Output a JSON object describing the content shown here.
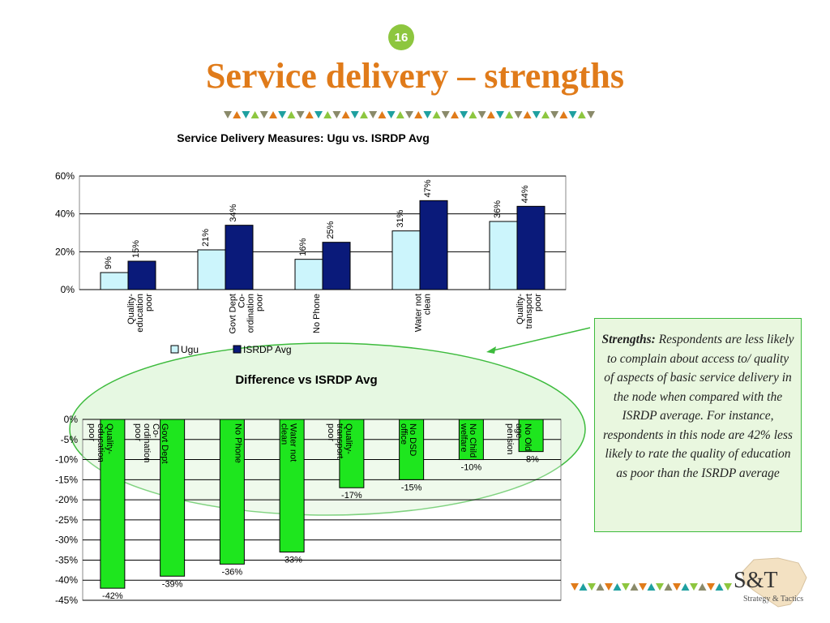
{
  "page_number": "16",
  "slide_title": "Service delivery – strengths",
  "callout": {
    "heading": "Strengths:",
    "body": "Respondents are less likely to complain about access to/ quality of aspects of basic service delivery in the node when compared with the ISRDP average. For instance, respondents in this node are 42% less likely to rate the quality of education as poor than the ISRDP average"
  },
  "logo": {
    "brand": "S&T",
    "tagline": "Strategy & Tactics"
  },
  "colors": {
    "title": "#e07b1a",
    "badge": "#8dc63f",
    "ugu": "#ccf5fc",
    "isrdp": "#0a1a7a",
    "diff_bar": "#1ee61e",
    "callout_border": "#3dbb3d"
  },
  "chart_data": [
    {
      "type": "bar",
      "title": "Service Delivery Measures: Ugu vs. ISRDP Avg",
      "categories": [
        "Quality-\neducation\npoor",
        "Govt Dept\nCo-\nordination\npoor",
        "No Phone",
        "Water not\nclean",
        "Quality-\ntransport\npoor"
      ],
      "series": [
        {
          "name": "Ugu",
          "values": [
            9,
            21,
            16,
            31,
            36
          ]
        },
        {
          "name": "ISRDP Avg",
          "values": [
            15,
            34,
            25,
            47,
            44
          ]
        }
      ],
      "data_labels": [
        [
          "9%",
          "21%",
          "16%",
          "31%",
          "36%"
        ],
        [
          "15%",
          "34%",
          "25%",
          "47%",
          "44%"
        ]
      ],
      "ylim": [
        0,
        60
      ],
      "yticks": [
        "0%",
        "20%",
        "40%",
        "60%"
      ],
      "legend": "bottom",
      "grid": true
    },
    {
      "type": "bar",
      "title": "Difference vs ISRDP Avg",
      "categories": [
        "Quality-\neducation\npoor",
        "Govt Dept\nCo-\nordination\npoor",
        "No Phone",
        "Water not\nclean",
        "Quality-\ntransport\npoor",
        "No DSD\noffice",
        "No Child\nwelfare",
        "No Old\nage\npension"
      ],
      "values": [
        -42,
        -39,
        -36,
        -33,
        -17,
        -15,
        -10,
        -8
      ],
      "data_labels": [
        "-42%",
        "-39%",
        "-36%",
        "-33%",
        "-17%",
        "-15%",
        "-10%",
        "-8%"
      ],
      "ylim": [
        -45,
        0
      ],
      "yticks": [
        "0%",
        "-5%",
        "-10%",
        "-15%",
        "-20%",
        "-25%",
        "-30%",
        "-35%",
        "-40%",
        "-45%"
      ],
      "grid": true
    }
  ]
}
